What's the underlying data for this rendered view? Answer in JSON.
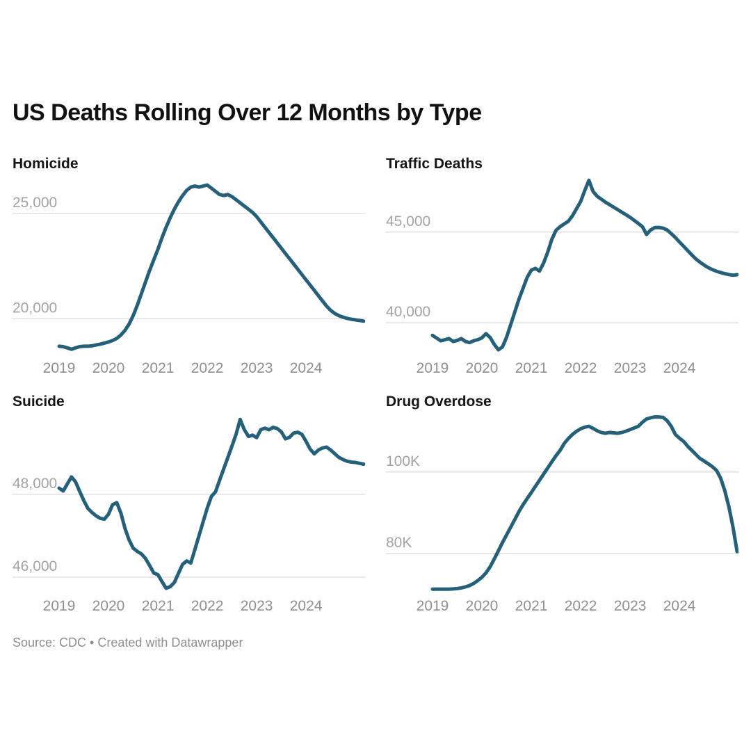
{
  "page": {
    "title": "US Deaths Rolling Over 12 Months by Type",
    "footer": "Source: CDC • Created with Datawrapper"
  },
  "theme": {
    "accent_color": "#24607a",
    "grid_color": "#dcdcdc",
    "y_label_color": "#a3a3a3",
    "x_label_color": "#8f8f8f",
    "title_color": "#111111",
    "footer_color": "#8e8e8e"
  },
  "chart_data": [
    {
      "type": "line",
      "title": "Homicide",
      "x_unit": "month",
      "x_range": [
        "2019-01",
        "2025-03"
      ],
      "x_tick_labels": [
        "2019",
        "2020",
        "2021",
        "2022",
        "2023",
        "2024"
      ],
      "x_tick_month_indices": [
        0,
        12,
        24,
        36,
        48,
        60
      ],
      "ylim": [
        18400,
        26650
      ],
      "grid": "horizontal",
      "legend": "none",
      "gridlines": [
        {
          "value": 25000,
          "label": "25,000"
        },
        {
          "value": 20000,
          "label": "20,000"
        }
      ],
      "values": [
        18700,
        18680,
        18620,
        18560,
        18620,
        18680,
        18700,
        18700,
        18720,
        18760,
        18800,
        18850,
        18900,
        18970,
        19070,
        19230,
        19450,
        19750,
        20150,
        20650,
        21200,
        21750,
        22300,
        22800,
        23300,
        23850,
        24350,
        24800,
        25200,
        25550,
        25850,
        26100,
        26250,
        26300,
        26250,
        26300,
        26350,
        26200,
        26050,
        25900,
        25850,
        25900,
        25800,
        25650,
        25500,
        25350,
        25200,
        25050,
        24850,
        24600,
        24350,
        24100,
        23850,
        23600,
        23350,
        23100,
        22850,
        22600,
        22350,
        22100,
        21850,
        21600,
        21350,
        21100,
        20850,
        20600,
        20400,
        20250,
        20150,
        20080,
        20020,
        19980,
        19950,
        19920,
        19890
      ]
    },
    {
      "type": "line",
      "title": "Traffic Deaths",
      "x_unit": "month",
      "x_range": [
        "2019-01",
        "2025-03"
      ],
      "x_tick_labels": [
        "2019",
        "2020",
        "2021",
        "2022",
        "2023",
        "2024"
      ],
      "x_tick_month_indices": [
        0,
        12,
        24,
        36,
        48,
        60
      ],
      "ylim": [
        38350,
        47950
      ],
      "grid": "horizontal",
      "legend": "none",
      "gridlines": [
        {
          "value": 45000,
          "label": "45,000"
        },
        {
          "value": 40000,
          "label": "40,000"
        }
      ],
      "values": [
        39300,
        39150,
        39000,
        39060,
        39120,
        38960,
        39020,
        39120,
        38960,
        38900,
        39000,
        39060,
        39160,
        39400,
        39180,
        38800,
        38500,
        38660,
        39200,
        39900,
        40600,
        41300,
        41900,
        42500,
        42900,
        43000,
        42850,
        43300,
        43900,
        44600,
        45100,
        45300,
        45450,
        45600,
        45900,
        46300,
        46700,
        47300,
        47860,
        47250,
        46980,
        46820,
        46660,
        46520,
        46380,
        46240,
        46100,
        45960,
        45820,
        45650,
        45480,
        45300,
        44870,
        45120,
        45250,
        45260,
        45220,
        45120,
        44920,
        44700,
        44460,
        44220,
        43980,
        43740,
        43520,
        43340,
        43180,
        43040,
        42930,
        42840,
        42770,
        42710,
        42660,
        42620,
        42650
      ]
    },
    {
      "type": "line",
      "title": "Suicide",
      "x_unit": "month",
      "x_range": [
        "2019-01",
        "2025-03"
      ],
      "x_tick_labels": [
        "2019",
        "2020",
        "2021",
        "2022",
        "2023",
        "2024"
      ],
      "x_tick_month_indices": [
        0,
        12,
        24,
        36,
        48,
        60
      ],
      "ylim": [
        45680,
        49880
      ],
      "grid": "horizontal",
      "legend": "none",
      "gridlines": [
        {
          "value": 48000,
          "label": "48,000"
        },
        {
          "value": 46000,
          "label": "46,000"
        }
      ],
      "values": [
        48150,
        48080,
        48250,
        48420,
        48300,
        48070,
        47850,
        47660,
        47560,
        47480,
        47420,
        47400,
        47520,
        47750,
        47800,
        47550,
        47180,
        46900,
        46700,
        46620,
        46560,
        46450,
        46280,
        46100,
        46060,
        45890,
        45730,
        45770,
        45870,
        46090,
        46310,
        46390,
        46340,
        46670,
        47000,
        47340,
        47670,
        47950,
        48060,
        48340,
        48620,
        48890,
        49170,
        49450,
        49810,
        49560,
        49400,
        49430,
        49370,
        49560,
        49600,
        49560,
        49620,
        49590,
        49510,
        49340,
        49380,
        49480,
        49500,
        49450,
        49280,
        49090,
        48980,
        49070,
        49120,
        49140,
        49070,
        48980,
        48890,
        48840,
        48800,
        48780,
        48770,
        48750,
        48730
      ]
    },
    {
      "type": "line",
      "title": "Drug Overdose",
      "x_unit": "month",
      "x_range": [
        "2019-01",
        "2025-03"
      ],
      "x_tick_labels": [
        "2019",
        "2020",
        "2021",
        "2022",
        "2023",
        "2024"
      ],
      "x_tick_month_indices": [
        0,
        12,
        24,
        36,
        48,
        60
      ],
      "ylim": [
        71000,
        113600
      ],
      "grid": "horizontal",
      "legend": "none",
      "gridlines": [
        {
          "value": 100000,
          "label": "100K"
        },
        {
          "value": 80000,
          "label": "80K"
        }
      ],
      "values": [
        71300,
        71300,
        71300,
        71300,
        71300,
        71350,
        71450,
        71600,
        71850,
        72200,
        72700,
        73400,
        74200,
        75300,
        76800,
        78700,
        80700,
        82700,
        84600,
        86500,
        88400,
        90300,
        92000,
        93500,
        95000,
        96500,
        98000,
        99500,
        101000,
        102500,
        104000,
        105300,
        107000,
        108200,
        109200,
        110000,
        110600,
        111000,
        111200,
        110700,
        110100,
        109700,
        109500,
        109700,
        109600,
        109500,
        109700,
        110000,
        110400,
        110800,
        111200,
        112200,
        113000,
        113300,
        113500,
        113500,
        113400,
        112600,
        111200,
        109200,
        108300,
        107500,
        106300,
        105300,
        104300,
        103300,
        102700,
        102000,
        101300,
        100400,
        98500,
        95500,
        91500,
        86500,
        80500
      ]
    }
  ]
}
